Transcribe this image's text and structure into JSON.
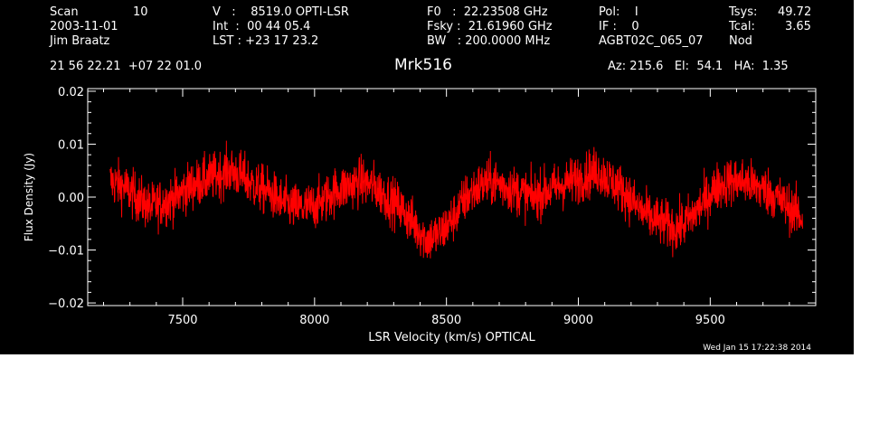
{
  "header": {
    "scan_label": "Scan",
    "scan_value": "10",
    "date": "2003-11-01",
    "observer": "Jim Braatz",
    "v_line": "V   :    8519.0 OPTI-LSR",
    "int_line": "Int  :  00 44 05.4",
    "lst_line": "LST : +23 17 23.2",
    "f0_line": "F0   :  22.23508 GHz",
    "fsky_line": "Fsky :  21.61960 GHz",
    "bw_line": "BW   : 200.0000 MHz",
    "pol_line": "Pol:    I",
    "if_line": "IF :    0",
    "proj": "AGBT02C_065_07",
    "tsys_label": "Tsys:",
    "tsys_value": "49.72",
    "tcal_label": "Tcal:",
    "tcal_value": "3.65",
    "mode": "Nod",
    "coords": "21 56 22.21  +07 22 01.0",
    "source": "Mrk516",
    "az_el_ha": "Az: 215.6   El:  54.1   HA:  1.35"
  },
  "timestamp": "Wed Jan 15 17:22:38 2014",
  "colors": {
    "background": "#000000",
    "axes": "#ffffff",
    "trace": "#ff0000"
  },
  "chart_data": {
    "type": "line",
    "title": "Mrk516",
    "xlabel": "LSR Velocity (km/s) OPTICAL",
    "ylabel": "Flux Density (Jy)",
    "xlim": [
      7140,
      9900
    ],
    "ylim": [
      -0.0205,
      0.0205
    ],
    "xticks": [
      7500,
      8000,
      8500,
      9000,
      9500
    ],
    "xtick_labels": [
      "7500",
      "8000",
      "8500",
      "9000",
      "9500"
    ],
    "yticks": [
      -0.02,
      -0.01,
      0.0,
      0.01,
      0.02
    ],
    "ytick_labels": [
      "−0.02",
      "−0.01",
      "0.00",
      "0.01",
      "0.02"
    ],
    "series": [
      {
        "x": [
          7225,
          7275,
          7325,
          7375,
          7425,
          7475,
          7525,
          7575,
          7625,
          7675,
          7725,
          7775,
          7825,
          7875,
          7925,
          7975,
          8025,
          8075,
          8125,
          8175,
          8225,
          8275,
          8325,
          8375,
          8425,
          8475,
          8525,
          8575,
          8625,
          8675,
          8725,
          8775,
          8825,
          8875,
          8925,
          8975,
          9025,
          9075,
          9125,
          9175,
          9225,
          9275,
          9325,
          9375,
          9425,
          9475,
          9525,
          9575,
          9625,
          9675,
          9725,
          9775,
          9825,
          9850
        ],
        "y": [
          0.003,
          0.002,
          0.0,
          -0.002,
          -0.001,
          0.0,
          0.002,
          0.003,
          0.004,
          0.005,
          0.004,
          0.002,
          0.001,
          -0.001,
          -0.002,
          -0.002,
          -0.001,
          0.001,
          0.002,
          0.003,
          0.002,
          0.0,
          -0.002,
          -0.005,
          -0.008,
          -0.007,
          -0.004,
          0.0,
          0.002,
          0.003,
          0.002,
          0.001,
          0.0,
          0.001,
          0.002,
          0.003,
          0.004,
          0.005,
          0.003,
          0.001,
          -0.002,
          -0.004,
          -0.005,
          -0.006,
          -0.004,
          -0.001,
          0.002,
          0.003,
          0.003,
          0.002,
          0.001,
          -0.001,
          -0.003,
          -0.004
        ]
      }
    ]
  }
}
